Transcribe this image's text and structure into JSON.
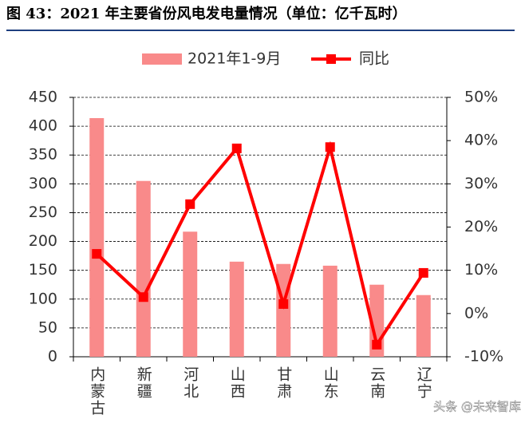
{
  "chart_data": {
    "type": "bar_line",
    "title": "图 43：2021 年主要省份风电发电量情况（单位：亿千瓦时）",
    "categories": [
      "内蒙古",
      "新疆",
      "河北",
      "山西",
      "甘肃",
      "山东",
      "云南",
      "辽宁"
    ],
    "series": [
      {
        "name": "2021年1-9月",
        "type": "bar",
        "color": "#f98a8a",
        "values": [
          414,
          305,
          217,
          165,
          161,
          158,
          125,
          107
        ]
      },
      {
        "name": "同比",
        "type": "line",
        "axis": "y2",
        "color": "#ff0000",
        "values": [
          13.8,
          3.8,
          25.3,
          38.2,
          2.2,
          38.5,
          -7.2,
          9.4
        ]
      }
    ],
    "ylim": [
      0,
      450
    ],
    "yticks": [
      0,
      50,
      100,
      150,
      200,
      250,
      300,
      350,
      400,
      450
    ],
    "y2lim": [
      -10,
      50
    ],
    "y2ticks": [
      {
        "value": -10,
        "label": "-10%"
      },
      {
        "value": 0,
        "label": "0%"
      },
      {
        "value": 10,
        "label": "10%"
      },
      {
        "value": 20,
        "label": "20%"
      },
      {
        "value": 30,
        "label": "30%"
      },
      {
        "value": 40,
        "label": "40%"
      },
      {
        "value": 50,
        "label": "50%"
      }
    ],
    "grid": true,
    "legend": "top",
    "watermark": "头条 @未来智库"
  }
}
